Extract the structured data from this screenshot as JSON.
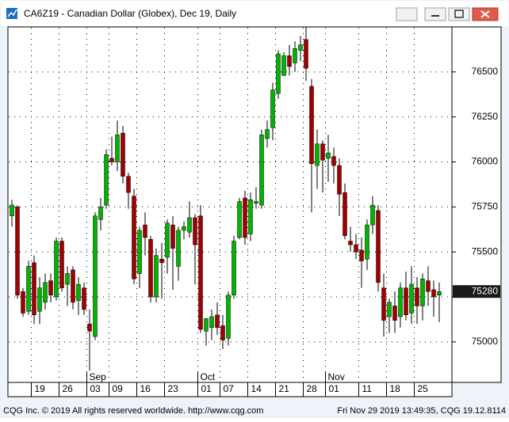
{
  "window": {
    "title": "CA6Z19 - Canadian Dollar (Globex), Dec 19, Daily"
  },
  "footer": {
    "left": "CQG Inc. © 2019 All rights reserved worldwide. http://www.cqg.com",
    "right": "Fri Nov 29 2019 13:49:35, CQG 19.12.8114"
  },
  "chart_data": {
    "type": "candlestick",
    "categories": [
      null,
      null,
      null,
      null,
      "19",
      null,
      null,
      null,
      null,
      "26",
      null,
      null,
      null,
      null,
      "03",
      null,
      null,
      null,
      "09",
      null,
      null,
      null,
      null,
      "16",
      null,
      null,
      null,
      null,
      "23",
      null,
      null,
      null,
      null,
      null,
      "01",
      null,
      null,
      null,
      "07",
      null,
      null,
      null,
      null,
      "14",
      null,
      null,
      null,
      null,
      "21",
      null,
      null,
      null,
      null,
      "28",
      null,
      null,
      null,
      "01",
      null,
      null,
      null,
      null,
      null,
      "11",
      null,
      null,
      null,
      null,
      "18",
      null,
      null,
      null,
      null,
      "25",
      null,
      null,
      null,
      null
    ],
    "month_labels": [
      null,
      null,
      null,
      null,
      null,
      null,
      null,
      null,
      null,
      null,
      null,
      null,
      null,
      null,
      "Sep",
      null,
      null,
      null,
      null,
      null,
      null,
      null,
      null,
      null,
      null,
      null,
      null,
      null,
      null,
      null,
      null,
      null,
      null,
      null,
      "Oct",
      null,
      null,
      null,
      null,
      null,
      null,
      null,
      null,
      null,
      null,
      null,
      null,
      null,
      null,
      null,
      null,
      null,
      null,
      null,
      null,
      null,
      null,
      "Nov",
      null,
      null,
      null,
      null,
      null,
      null,
      null,
      null,
      null,
      null,
      null,
      null,
      null,
      null,
      null,
      null,
      null,
      null,
      null,
      null
    ],
    "open": [
      75700,
      75750,
      75280,
      75170,
      75440,
      75170,
      75220,
      75340,
      75250,
      75560,
      75320,
      75400,
      75230,
      75300,
      75100,
      75030,
      75680,
      75760,
      76020,
      76000,
      76160,
      75920,
      75810,
      75380,
      75650,
      75570,
      75250,
      75460,
      75470,
      75650,
      75420,
      75620,
      75610,
      75690,
      75700,
      75060,
      75080,
      75150,
      75090,
      75020,
      75260,
      75580,
      75800,
      75600,
      75770,
      75760,
      76130,
      76190,
      76380,
      76480,
      76590,
      76550,
      76620,
      76680,
      76420,
      75980,
      76100,
      76020,
      76030,
      75980,
      75830,
      75560,
      75540,
      75510,
      75460,
      75650,
      75730,
      75300,
      75140,
      75200,
      75140,
      75300,
      75160,
      75300,
      75200,
      75340,
      75290,
      75260
    ],
    "high": [
      75790,
      75760,
      75300,
      75450,
      75480,
      75360,
      75380,
      75380,
      75580,
      75580,
      75420,
      75420,
      75360,
      75330,
      75180,
      75720,
      75800,
      76070,
      76140,
      76230,
      76200,
      75940,
      75850,
      75640,
      75720,
      75590,
      75520,
      75550,
      75680,
      75700,
      75640,
      75670,
      75780,
      75710,
      75760,
      75130,
      75180,
      75220,
      75150,
      75280,
      75590,
      75800,
      75840,
      75830,
      75860,
      76180,
      76230,
      76440,
      76620,
      76610,
      76650,
      76670,
      76700,
      76750,
      76460,
      76180,
      76120,
      76150,
      76080,
      76020,
      75880,
      75640,
      75600,
      75580,
      75680,
      75810,
      75760,
      75380,
      75240,
      75280,
      75330,
      75390,
      75420,
      75360,
      75380,
      75420,
      75340,
      75330
    ],
    "low": [
      75640,
      75240,
      75140,
      75150,
      75100,
      75100,
      75180,
      75220,
      75230,
      75280,
      75200,
      75180,
      75150,
      75150,
      74840,
      75010,
      75620,
      75740,
      75980,
      75950,
      75880,
      75740,
      75320,
      75300,
      75480,
      75220,
      75220,
      75240,
      75380,
      75290,
      75340,
      75570,
      75580,
      75320,
      75050,
      74980,
      75010,
      75040,
      74960,
      74980,
      75240,
      75570,
      75540,
      75560,
      75740,
      75740,
      76080,
      76120,
      76350,
      76480,
      76480,
      76500,
      76560,
      76450,
      75720,
      75850,
      75830,
      75890,
      75880,
      75700,
      75570,
      75500,
      75460,
      75300,
      75400,
      75600,
      75280,
      75030,
      75050,
      75050,
      75080,
      75120,
      75100,
      75100,
      75120,
      75200,
      75140,
      75110
    ],
    "close": [
      75760,
      75260,
      75160,
      75420,
      75150,
      75300,
      75330,
      75260,
      75560,
      75300,
      75380,
      75220,
      75320,
      75180,
      75060,
      75700,
      75750,
      76040,
      76000,
      76150,
      75920,
      75830,
      75350,
      75620,
      75580,
      75250,
      75480,
      75440,
      75660,
      75520,
      75620,
      75640,
      75690,
      75540,
      75070,
      75130,
      75140,
      75080,
      75010,
      75260,
      75560,
      75780,
      75580,
      75790,
      75780,
      76150,
      76180,
      76400,
      76600,
      76590,
      76530,
      76630,
      76650,
      76520,
      75990,
      76100,
      76010,
      76050,
      75980,
      75820,
      75590,
      75540,
      75500,
      75450,
      75650,
      75760,
      75330,
      75120,
      75220,
      75120,
      75300,
      75150,
      75320,
      75200,
      75350,
      75280,
      75250,
      75280
    ],
    "up_color": "#00b400",
    "down_color": "#a00000",
    "ylim": [
      74775,
      76750
    ],
    "yticks": [
      75000,
      75250,
      75500,
      75750,
      76000,
      76250,
      76500
    ],
    "grid": true
  }
}
